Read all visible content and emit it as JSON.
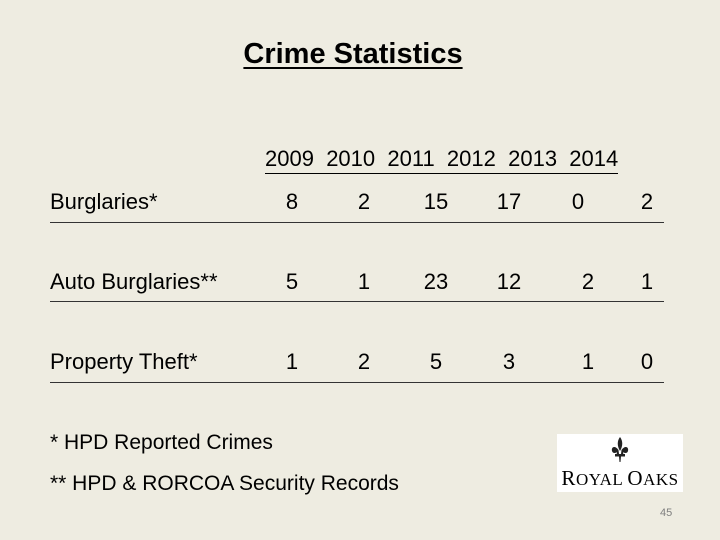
{
  "title": "Crime Statistics",
  "years": [
    "2009",
    "2010",
    "2011",
    "2012",
    "2013",
    "2014"
  ],
  "rows": [
    {
      "label": "Burglaries*",
      "values": [
        "8",
        "2",
        "15",
        "17",
        "0",
        "2"
      ]
    },
    {
      "label": "Auto Burglaries**",
      "values": [
        "5",
        "1",
        "23",
        "12",
        "2",
        "1"
      ]
    },
    {
      "label": "Property Theft*",
      "values": [
        "1",
        "2",
        "5",
        "3",
        "1",
        "0"
      ]
    }
  ],
  "footnotes": [
    "* HPD Reported Crimes",
    "** HPD & RORCOA Security Records"
  ],
  "logo": {
    "text": "Royal Oaks"
  },
  "page_number": "45",
  "colors": {
    "background": "#eeece1",
    "text": "#000000",
    "page_number": "#7f7f7f"
  }
}
